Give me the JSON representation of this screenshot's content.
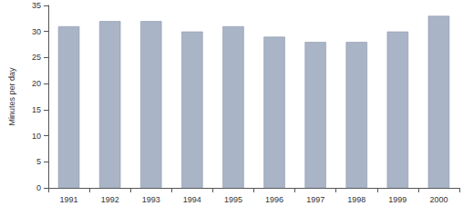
{
  "chart_data": {
    "type": "bar",
    "y_label": "Minutes per day",
    "categories": [
      "1991",
      "1992",
      "1993",
      "1994",
      "1995",
      "1996",
      "1997",
      "1998",
      "1999",
      "2000"
    ],
    "values": [
      31,
      32,
      32,
      30,
      31,
      29,
      28,
      28,
      30,
      33
    ],
    "color": "#a9b4c6",
    "ylim": [
      0,
      35
    ],
    "yticks": [
      0,
      5,
      10,
      15,
      20,
      25,
      30,
      35
    ],
    "grid": false
  }
}
